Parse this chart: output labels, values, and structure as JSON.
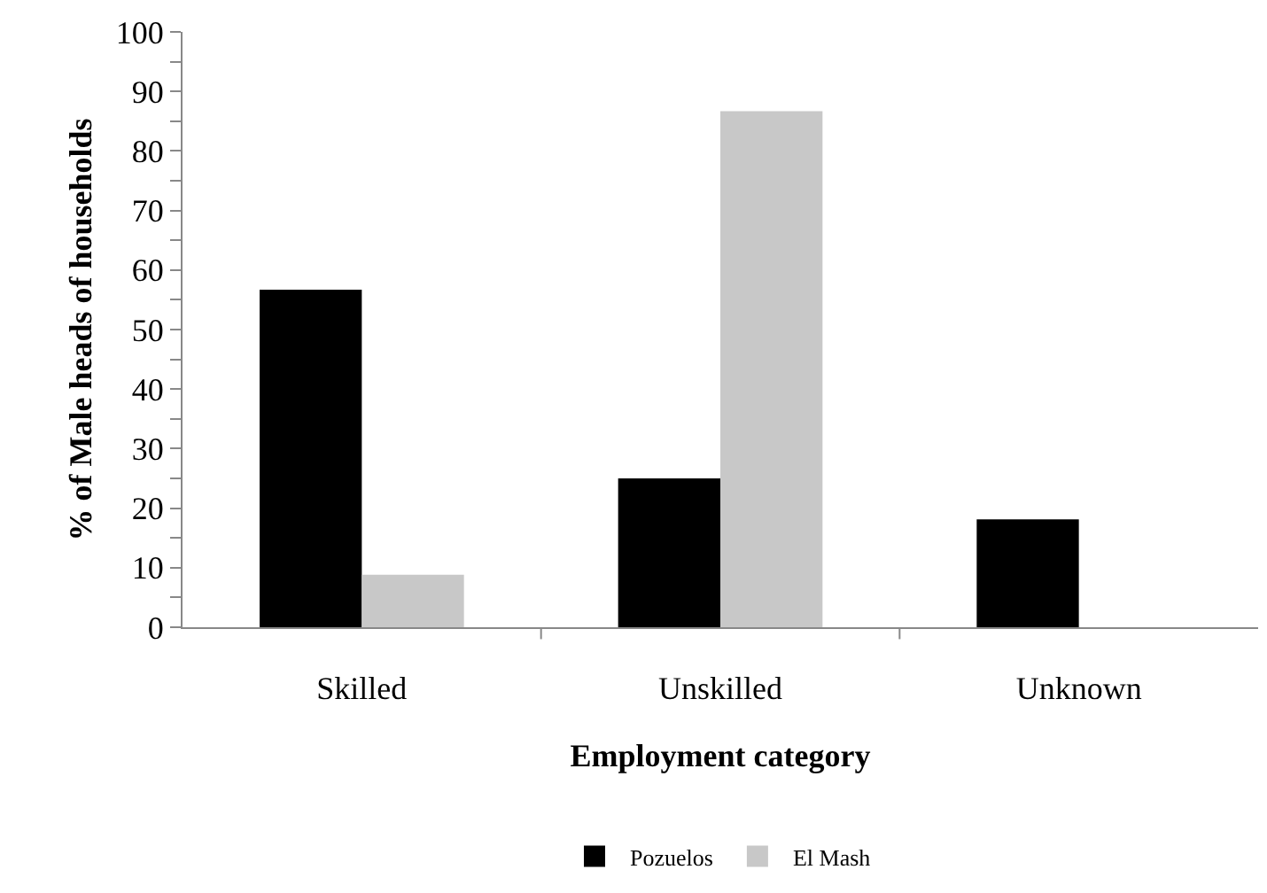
{
  "chart_data": {
    "type": "bar",
    "xlabel": "Employment category",
    "ylabel": "% of Male heads of households",
    "categories": [
      "Skilled",
      "Unskilled",
      "Unknown"
    ],
    "series": [
      {
        "name": "Pozuelos",
        "color": "#000000",
        "values": [
          56.7,
          25.0,
          18.1
        ]
      },
      {
        "name": "El Mash",
        "color": "#c8c8c8",
        "values": [
          8.8,
          86.7,
          null
        ]
      }
    ],
    "ylim": [
      0,
      100
    ],
    "yticks": [
      0,
      {
        "value": 5,
        "label": null
      },
      10,
      {
        "value": 15,
        "label": null
      },
      20,
      {
        "value": 25,
        "label": null
      },
      30,
      {
        "value": 35,
        "label": null
      },
      40,
      {
        "value": 45,
        "label": null
      },
      50,
      {
        "value": 55,
        "label": null
      },
      60,
      {
        "value": 65,
        "label": null
      },
      70,
      {
        "value": 75,
        "label": null
      },
      80,
      {
        "value": 85,
        "label": null
      },
      90,
      {
        "value": 95,
        "label": null
      },
      100
    ],
    "legend": "bottom"
  }
}
